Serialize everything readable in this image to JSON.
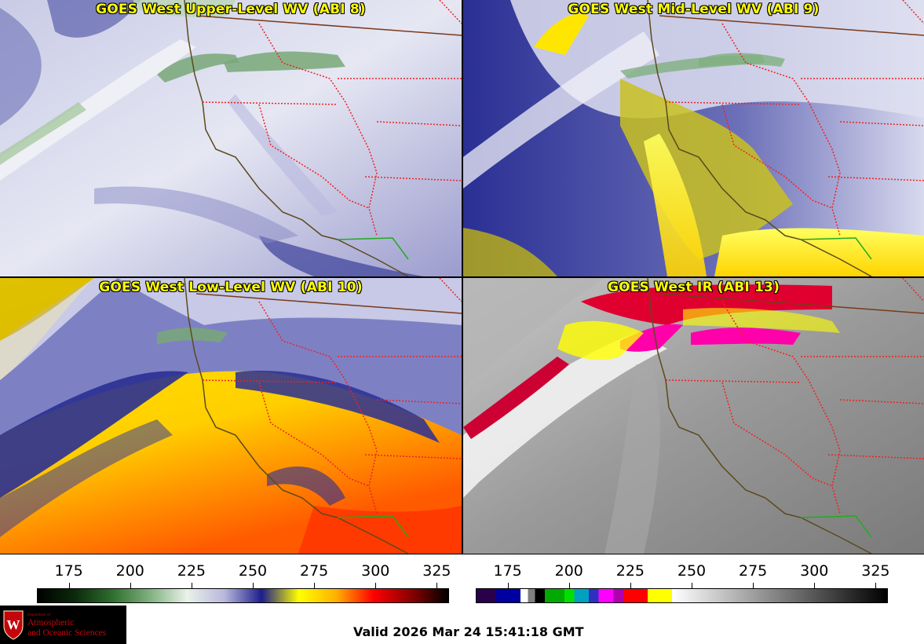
{
  "panels": [
    {
      "id": "upper",
      "title": "GOES West Upper-Level WV (ABI 8)"
    },
    {
      "id": "mid",
      "title": "GOES West Mid-Level WV (ABI 9)"
    },
    {
      "id": "low",
      "title": "GOES West Low-Level WV (ABI 10)"
    },
    {
      "id": "ir",
      "title": "GOES West IR (ABI 13)"
    }
  ],
  "wv_colorbar": {
    "ticks": [
      "175",
      "200",
      "225",
      "250",
      "275",
      "300",
      "325"
    ],
    "range": [
      162,
      330
    ],
    "colors": [
      "#000000",
      "#0b2a0b",
      "#2e6e2e",
      "#7fb07f",
      "#e9f2e9",
      "#b8b8dc",
      "#1d1d8c",
      "#ffff00",
      "#ffb000",
      "#ff0000",
      "#8b0000",
      "#000000"
    ]
  },
  "ir_colorbar": {
    "ticks": [
      "175",
      "200",
      "225",
      "250",
      "275",
      "300",
      "325"
    ],
    "range": [
      162,
      330
    ],
    "segments": [
      {
        "from": 162,
        "to": 170,
        "color": "#2b004a"
      },
      {
        "from": 170,
        "to": 180,
        "color": "#0000a0"
      },
      {
        "from": 180,
        "to": 183,
        "color": "#ffffff"
      },
      {
        "from": 183,
        "to": 186,
        "color": "#808080"
      },
      {
        "from": 186,
        "to": 190,
        "color": "#000000"
      },
      {
        "from": 190,
        "to": 198,
        "color": "#00aa00"
      },
      {
        "from": 198,
        "to": 202,
        "color": "#00e000"
      },
      {
        "from": 202,
        "to": 208,
        "color": "#00a0c0"
      },
      {
        "from": 208,
        "to": 212,
        "color": "#3030c0"
      },
      {
        "from": 212,
        "to": 218,
        "color": "#ff00ff"
      },
      {
        "from": 218,
        "to": 222,
        "color": "#b000b0"
      },
      {
        "from": 222,
        "to": 232,
        "color": "#ff0000"
      },
      {
        "from": 232,
        "to": 242,
        "color": "#ffff00"
      },
      {
        "from": 242,
        "to": 330,
        "color": "gradient"
      }
    ]
  },
  "logo": {
    "department": "Department of",
    "line1": "Atmospheric",
    "line2": "and Oceanic Sciences"
  },
  "valid_time": "Valid 2026 Mar 24 15:41:18 GMT"
}
